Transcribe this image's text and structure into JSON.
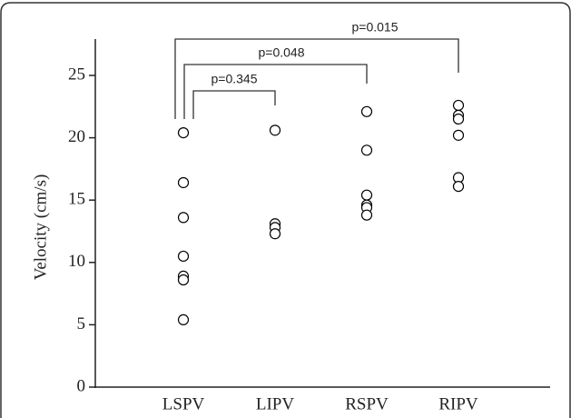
{
  "chart_data": {
    "type": "strip",
    "y_label": "Velocity (cm/s)",
    "categories": [
      "LSPV",
      "LIPV",
      "RSPV",
      "RIPV"
    ],
    "values": [
      [
        20.4,
        16.4,
        13.6,
        10.5,
        8.9,
        8.6,
        5.4
      ],
      [
        20.6,
        13.1,
        12.8,
        12.3
      ],
      [
        22.1,
        19.0,
        15.4,
        14.6,
        14.4,
        13.8
      ],
      [
        22.6,
        21.8,
        21.5,
        20.2,
        16.8,
        16.1
      ]
    ],
    "color": "#000000",
    "ylim": [
      0,
      25
    ],
    "yticks": [
      0,
      5,
      10,
      15,
      20,
      25
    ],
    "annotations": [
      "p=0.345",
      "p=0.048",
      "p=0.015"
    ]
  }
}
